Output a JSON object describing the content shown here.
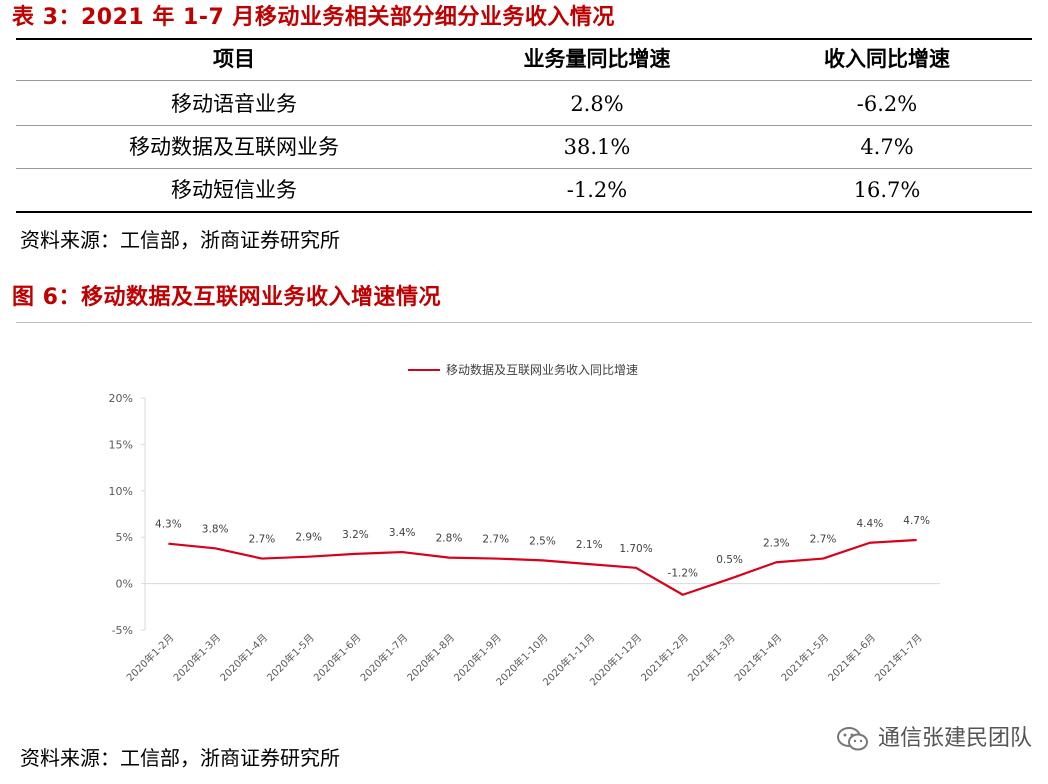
{
  "table3": {
    "title": "表 3：2021 年 1-7 月移动业务相关部分细分业务收入情况",
    "headers": [
      "项目",
      "业务量同比增速",
      "收入同比增速"
    ],
    "rows": [
      [
        "移动语音业务",
        "2.8%",
        "-6.2%"
      ],
      [
        "移动数据及互联网业务",
        "38.1%",
        "4.7%"
      ],
      [
        "移动短信业务",
        "-1.2%",
        "16.7%"
      ]
    ],
    "source": "资料来源：工信部，浙商证券研究所"
  },
  "figure6": {
    "title": "图 6：移动数据及互联网业务收入增速情况",
    "source": "资料来源：工信部，浙商证券研究所"
  },
  "watermark": {
    "text": "通信张建民团队",
    "icon": "wechat-icon"
  },
  "colors": {
    "accent": "#c00000",
    "line": "#d9001b",
    "axis": "#d9d9d9"
  },
  "chart_data": {
    "type": "line",
    "title": "",
    "legend": "移动数据及互联网业务收入同比增速",
    "legend_position": "top-center",
    "categories": [
      "2020年1-2月",
      "2020年1-3月",
      "2020年1-4月",
      "2020年1-5月",
      "2020年1-6月",
      "2020年1-7月",
      "2020年1-8月",
      "2020年1-9月",
      "2020年1-10月",
      "2020年1-11月",
      "2020年1-12月",
      "2021年1-2月",
      "2021年1-3月",
      "2021年1-4月",
      "2021年1-5月",
      "2021年1-6月",
      "2021年1-7月"
    ],
    "values": [
      4.3,
      3.8,
      2.7,
      2.9,
      3.2,
      3.4,
      2.8,
      2.7,
      2.5,
      2.1,
      1.7,
      -1.2,
      0.5,
      2.3,
      2.7,
      4.4,
      4.7
    ],
    "data_labels": [
      "4.3%",
      "3.8%",
      "2.7%",
      "2.9%",
      "3.2%",
      "3.4%",
      "2.8%",
      "2.7%",
      "2.5%",
      "2.1%",
      "1.70%",
      "-1.2%",
      "0.5%",
      "2.3%",
      "2.7%",
      "4.4%",
      "4.7%"
    ],
    "ylim": [
      -5,
      20
    ],
    "yticks": [
      -5,
      0,
      5,
      10,
      15,
      20
    ],
    "ytick_labels": [
      "-5%",
      "0%",
      "5%",
      "10%",
      "15%",
      "20%"
    ],
    "xlabel": "",
    "ylabel": "",
    "grid": false
  }
}
